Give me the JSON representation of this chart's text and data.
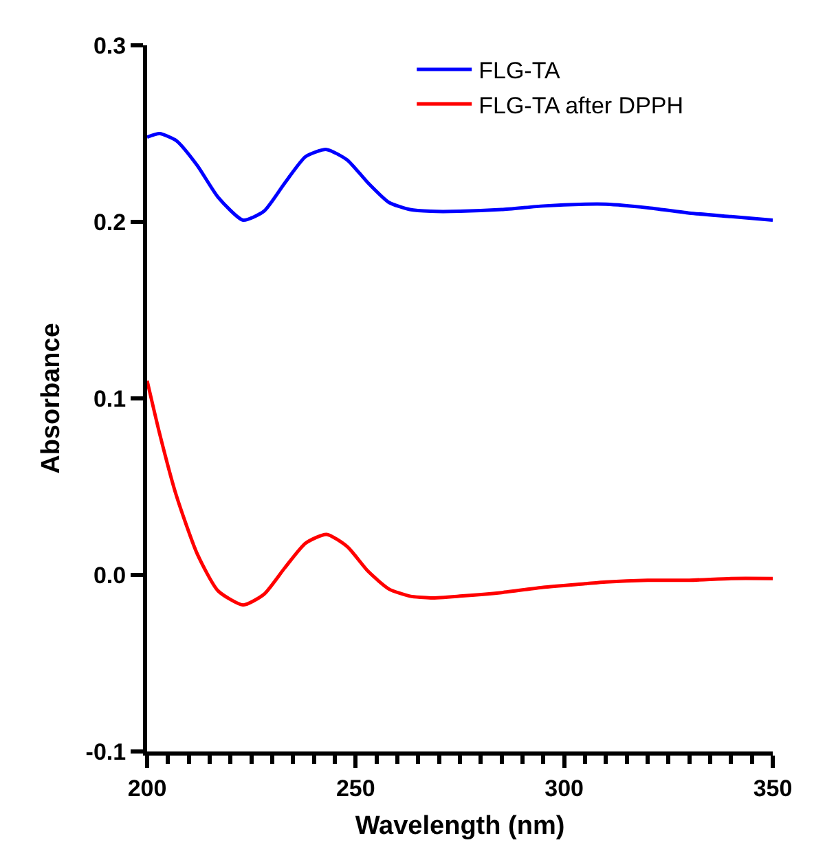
{
  "chart_data": {
    "type": "line",
    "xlabel": "Wavelength (nm)",
    "ylabel": "Absorbance",
    "xlim": [
      200,
      350
    ],
    "xticks": [
      200,
      250,
      300,
      350
    ],
    "ylim": [
      -0.1,
      0.3
    ],
    "yticks": [
      {
        "value": -0.1,
        "label": "-0.1"
      },
      {
        "value": 0,
        "label": "0.0"
      },
      {
        "value": 0.1,
        "label": "0.1"
      },
      {
        "value": 0.2,
        "label": "0.2"
      },
      {
        "value": 0.3,
        "label": "0.3"
      }
    ],
    "grid": false,
    "legend": "top right",
    "marker": "none",
    "line_style": "solid",
    "x": [
      200,
      203,
      207,
      212,
      217,
      223,
      228,
      233,
      238,
      243,
      248,
      253,
      258,
      263,
      268,
      275,
      285,
      295,
      305,
      310,
      320,
      330,
      340,
      350
    ],
    "series": [
      {
        "name": "FLG-TA",
        "color": "#0000ff",
        "values": [
          0.248,
          0.25,
          0.246,
          0.232,
          0.214,
          0.201,
          0.206,
          0.222,
          0.237,
          0.241,
          0.235,
          0.222,
          0.211,
          0.207,
          0.206,
          0.206,
          0.207,
          0.209,
          0.21,
          0.21,
          0.208,
          0.205,
          0.203,
          0.201
        ]
      },
      {
        "name": "FLG-TA after DPPH",
        "color": "#ff0000",
        "values": [
          0.11,
          0.08,
          0.045,
          0.012,
          -0.009,
          -0.017,
          -0.011,
          0.004,
          0.018,
          0.023,
          0.016,
          0.002,
          -0.008,
          -0.012,
          -0.013,
          -0.012,
          -0.01,
          -0.007,
          -0.005,
          -0.004,
          -0.003,
          -0.003,
          -0.002,
          -0.002
        ]
      }
    ]
  }
}
